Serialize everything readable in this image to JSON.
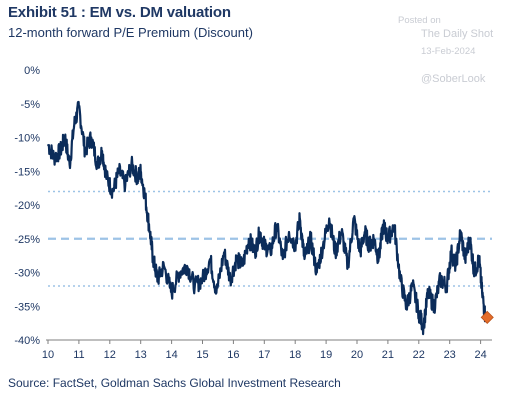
{
  "header": {
    "title": "Exhibit 51 : EM vs. DM valuation",
    "subtitle": "12-month forward P/E Premium (Discount)"
  },
  "watermark": {
    "posted_on": "Posted on",
    "name": "The Daily Shot",
    "date": "13-Feb-2024",
    "handle": "@SoberLook"
  },
  "footer": {
    "source": "Source: FactSet, Goldman Sachs Global Investment Research"
  },
  "chart_data": {
    "type": "line",
    "title": "Exhibit 51 : EM vs. DM valuation",
    "subtitle": "12-month forward P/E Premium (Discount)",
    "xlabel": "",
    "ylabel": "",
    "xlim": [
      2010,
      2024.4
    ],
    "ylim": [
      -40,
      0
    ],
    "x_ticks": [
      10,
      11,
      12,
      13,
      14,
      15,
      16,
      17,
      18,
      19,
      20,
      21,
      22,
      23,
      24
    ],
    "y_ticks": [
      "0%",
      "-5%",
      "-10%",
      "-15%",
      "-20%",
      "-25%",
      "-30%",
      "-35%",
      "-40%"
    ],
    "grid": false,
    "reference_lines": [
      {
        "y": -18,
        "style": "dotted",
        "color": "#9dc3e6"
      },
      {
        "y": -25,
        "style": "dashed",
        "color": "#9dc3e6"
      },
      {
        "y": -32,
        "style": "dotted",
        "color": "#9dc3e6"
      }
    ],
    "series": [
      {
        "color": "#0b2c5a",
        "x": [
          2010.0,
          2010.2,
          2010.4,
          2010.55,
          2010.7,
          2010.85,
          2011.0,
          2011.2,
          2011.4,
          2011.6,
          2011.75,
          2011.9,
          2012.1,
          2012.3,
          2012.5,
          2012.7,
          2012.9,
          2013.0,
          2013.15,
          2013.3,
          2013.4,
          2013.55,
          2013.75,
          2014.0,
          2014.25,
          2014.5,
          2014.75,
          2015.0,
          2015.25,
          2015.45,
          2015.7,
          2015.9,
          2016.1,
          2016.3,
          2016.5,
          2016.7,
          2016.85,
          2017.0,
          2017.2,
          2017.4,
          2017.6,
          2017.8,
          2018.0,
          2018.15,
          2018.3,
          2018.5,
          2018.7,
          2018.9,
          2019.1,
          2019.3,
          2019.5,
          2019.7,
          2019.9,
          2020.1,
          2020.25,
          2020.4,
          2020.55,
          2020.7,
          2020.85,
          2021.0,
          2021.2,
          2021.4,
          2021.6,
          2021.8,
          2022.0,
          2022.15,
          2022.3,
          2022.5,
          2022.7,
          2022.9,
          2023.05,
          2023.2,
          2023.35,
          2023.5,
          2023.65,
          2023.8,
          2023.95,
          2024.05,
          2024.15
        ],
        "values": [
          -11,
          -13,
          -12,
          -10,
          -14,
          -8,
          -5.5,
          -12,
          -10,
          -14,
          -12,
          -16,
          -18,
          -15,
          -17,
          -14,
          -16,
          -15,
          -19,
          -24,
          -28,
          -31,
          -29,
          -33,
          -30,
          -29,
          -32,
          -31,
          -28,
          -33,
          -27,
          -31,
          -28,
          -29,
          -25,
          -27,
          -24,
          -26,
          -27,
          -23,
          -28,
          -24,
          -26,
          -22,
          -28,
          -25,
          -30,
          -26,
          -22,
          -27,
          -24,
          -29,
          -22,
          -27,
          -24,
          -26,
          -25,
          -28,
          -23,
          -25,
          -23,
          -31,
          -35,
          -32,
          -36,
          -38,
          -33,
          -35,
          -31,
          -32,
          -27,
          -29,
          -24,
          -28,
          -25,
          -30,
          -28,
          -33,
          -36.5
        ]
      }
    ],
    "last_point": {
      "x": 2024.15,
      "value": -36.5,
      "color": "#e46c2a"
    }
  }
}
